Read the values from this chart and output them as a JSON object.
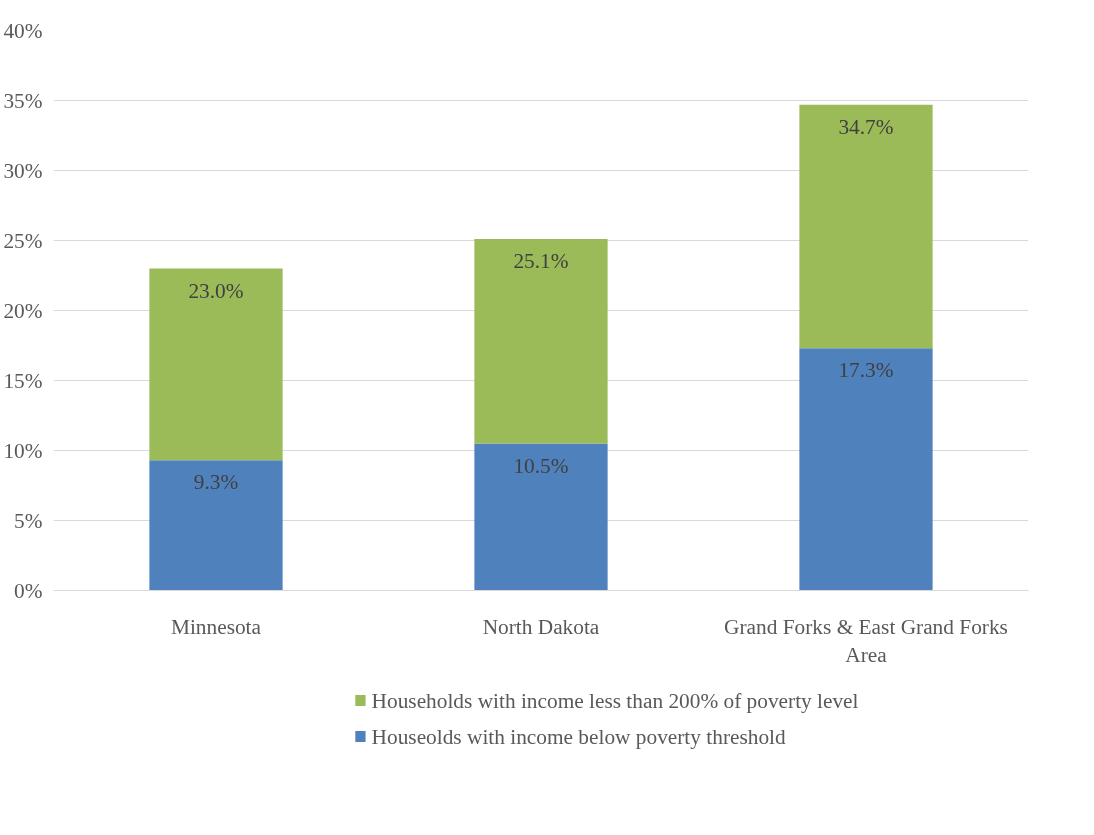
{
  "chart_data": {
    "type": "bar",
    "stacked": true,
    "categories": [
      "Minnesota",
      "North Dakota",
      "Grand Forks & East Grand Forks Area"
    ],
    "series": [
      {
        "name": "Houseolds with income below poverty threshold",
        "color": "#4f81bd",
        "values": [
          9.3,
          10.5,
          17.3
        ],
        "value_labels": [
          "9.3%",
          "10.5%",
          "17.3%"
        ]
      },
      {
        "name": "Households with income less than 200% of poverty level",
        "color": "#9bbb59",
        "values": [
          13.7,
          14.6,
          17.4
        ]
      }
    ],
    "totals": [
      "23.0%",
      "25.1%",
      "34.7%"
    ],
    "ylim": [
      0,
      40
    ],
    "yticks": [
      {
        "value": 0,
        "label": "0%"
      },
      {
        "value": 5,
        "label": "5%"
      },
      {
        "value": 10,
        "label": "10%"
      },
      {
        "value": 15,
        "label": "15%"
      },
      {
        "value": 20,
        "label": "20%"
      },
      {
        "value": 25,
        "label": "25%"
      },
      {
        "value": 30,
        "label": "30%"
      },
      {
        "value": 35,
        "label": "35%"
      },
      {
        "value": 40,
        "label": "40%"
      }
    ],
    "grid": "y",
    "legend": "bottom"
  }
}
